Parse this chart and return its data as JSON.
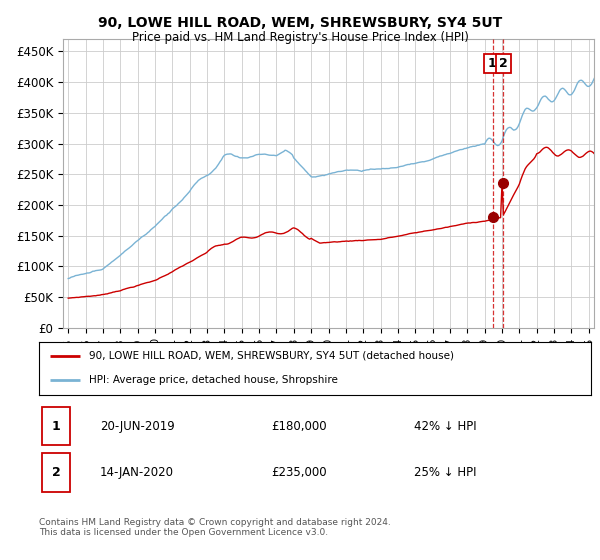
{
  "title": "90, LOWE HILL ROAD, WEM, SHREWSBURY, SY4 5UT",
  "subtitle": "Price paid vs. HM Land Registry's House Price Index (HPI)",
  "ylim": [
    0,
    470000
  ],
  "yticks": [
    0,
    50000,
    100000,
    150000,
    200000,
    250000,
    300000,
    350000,
    400000,
    450000
  ],
  "ytick_labels": [
    "£0",
    "£50K",
    "£100K",
    "£150K",
    "£200K",
    "£250K",
    "£300K",
    "£350K",
    "£400K",
    "£450K"
  ],
  "xlim_start": 1994.7,
  "xlim_end": 2025.3,
  "sale1_date": 2019.47,
  "sale1_price": 180000,
  "sale1_display": "20-JUN-2019",
  "sale1_amount": "£180,000",
  "sale1_pct": "42% ↓ HPI",
  "sale2_date": 2020.04,
  "sale2_price": 235000,
  "sale2_display": "14-JAN-2020",
  "sale2_amount": "£235,000",
  "sale2_pct": "25% ↓ HPI",
  "red_line_label": "90, LOWE HILL ROAD, WEM, SHREWSBURY, SY4 5UT (detached house)",
  "blue_line_label": "HPI: Average price, detached house, Shropshire",
  "footer": "Contains HM Land Registry data © Crown copyright and database right 2024.\nThis data is licensed under the Open Government Licence v3.0.",
  "red_color": "#cc0000",
  "blue_color": "#7ab3d4",
  "grid_color": "#cccccc",
  "background_color": "#ffffff"
}
